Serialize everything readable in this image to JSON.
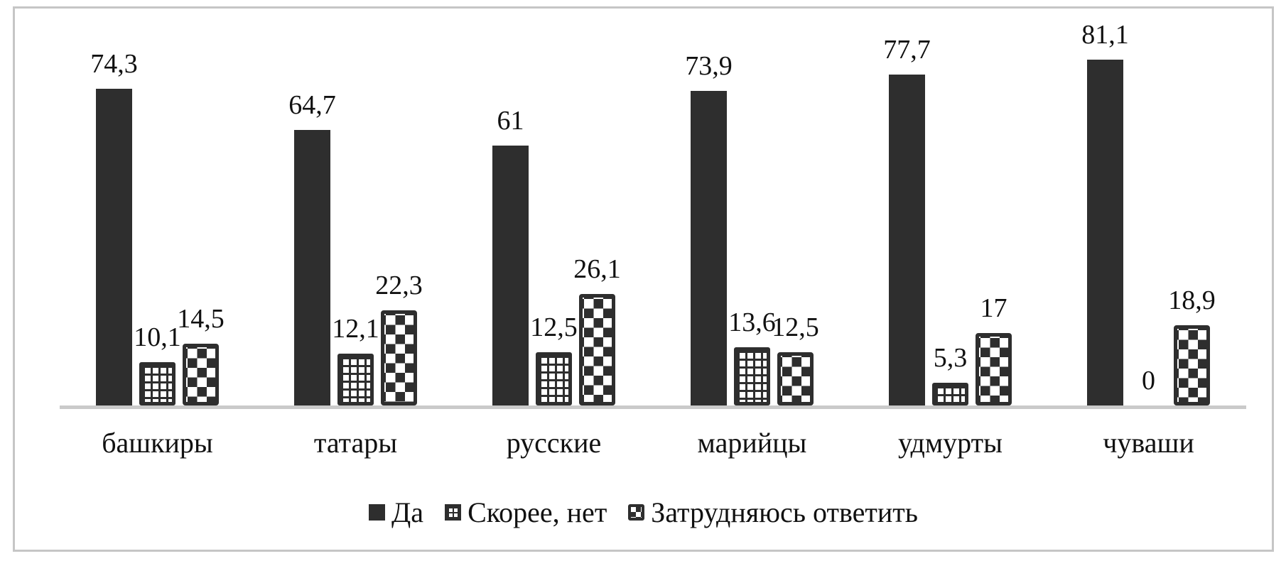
{
  "chart_data": {
    "type": "bar",
    "title": "",
    "xlabel": "",
    "ylabel": "",
    "categories": [
      "башкиры",
      "татары",
      "русские",
      "марийцы",
      "удмурты",
      "чуваши"
    ],
    "series": [
      {
        "name": "Да",
        "pattern": "solid",
        "values": [
          74.3,
          64.7,
          61,
          73.9,
          77.7,
          81.1
        ],
        "labels": [
          "74,3",
          "64,7",
          "61",
          "73,9",
          "77,7",
          "81,1"
        ]
      },
      {
        "name": "Скорее, нет",
        "pattern": "grid",
        "values": [
          10.1,
          12.1,
          12.5,
          13.6,
          5.3,
          0
        ],
        "labels": [
          "10,1",
          "12,1",
          "12,5",
          "13,6",
          "5,3",
          "0"
        ]
      },
      {
        "name": "Затрудняюсь ответить",
        "pattern": "checker",
        "values": [
          14.5,
          22.3,
          26.1,
          12.5,
          17,
          18.9
        ],
        "labels": [
          "14,5",
          "22,3",
          "26,1",
          "12,5",
          "17",
          "18,9"
        ]
      }
    ],
    "ylim": [
      0,
      83
    ],
    "y_axis_shown": false,
    "grid": false,
    "value_labels_shown": true,
    "decimal_separator": ",",
    "legend_position": "bottom",
    "colors": {
      "bar": "#2e2e2e",
      "axis_line": "#cacaca",
      "frame_border": "#c6c6c6",
      "background": "#ffffff",
      "text": "#111111"
    }
  }
}
